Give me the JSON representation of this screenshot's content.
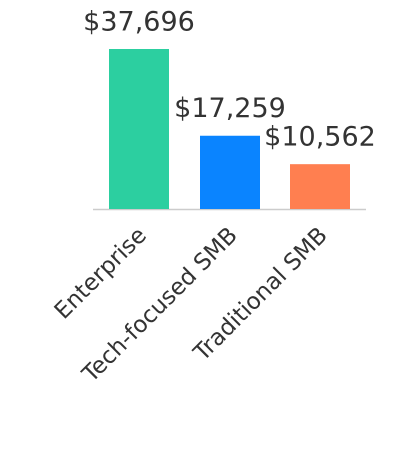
{
  "chart_data": {
    "type": "bar",
    "categories": [
      "Enterprise",
      "Tech-focused SMB",
      "Traditional SMB"
    ],
    "values": [
      37696,
      17259,
      10562
    ],
    "value_labels": [
      "$37,696",
      "$17,259",
      "$10,562"
    ],
    "colors": [
      "#2ccfa0",
      "#0a84ff",
      "#ff7f50"
    ]
  }
}
